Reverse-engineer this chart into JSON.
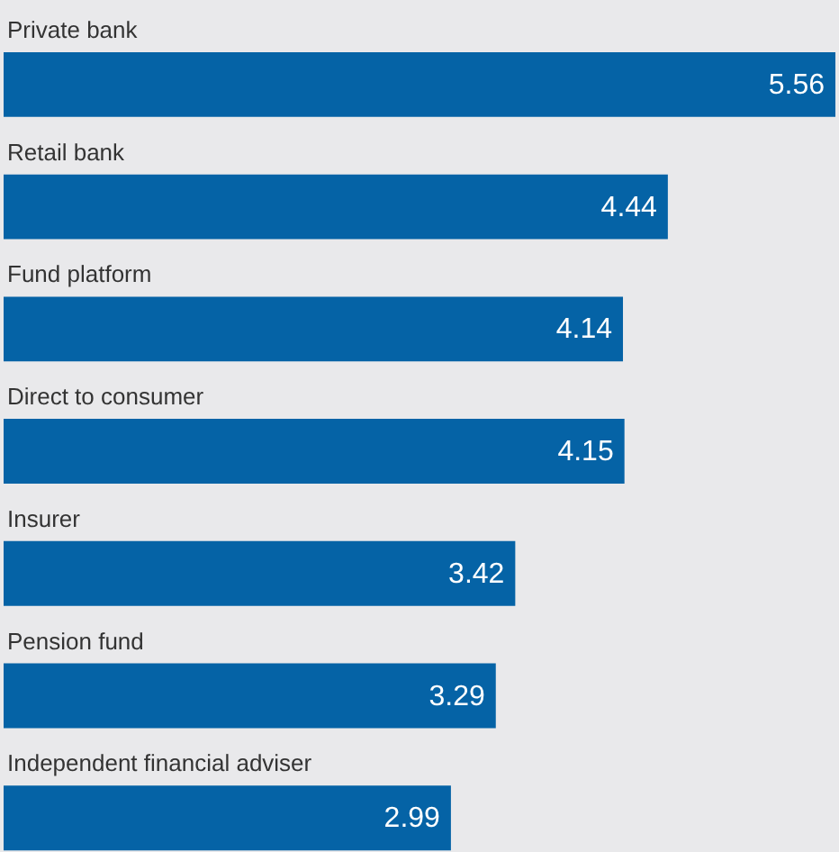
{
  "chart_data": {
    "type": "bar",
    "orientation": "horizontal",
    "categories": [
      "Private bank",
      "Retail bank",
      "Fund platform",
      "Direct to consumer",
      "Insurer",
      "Pension fund",
      "Independent financial adviser"
    ],
    "values": [
      5.56,
      4.44,
      4.14,
      4.15,
      3.42,
      3.29,
      2.99
    ],
    "color": "#0563a6",
    "data_labels": true
  }
}
